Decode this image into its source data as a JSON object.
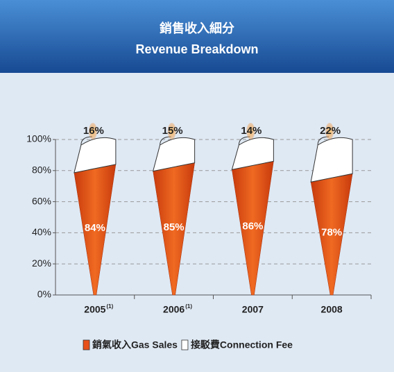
{
  "chart_data": {
    "type": "torch_stacked_bar",
    "title": "銷售收入細分",
    "subtitle": "Revenue Breakdown",
    "categories": [
      "2005",
      "2006",
      "2007",
      "2008"
    ],
    "category_notes": [
      "(1)",
      "(1)",
      null,
      null
    ],
    "series": [
      {
        "name": "銷氣收入Gas Sales",
        "color": "#e8501a",
        "values": [
          84,
          85,
          86,
          78
        ],
        "value_labels": [
          "84%",
          "85%",
          "86%",
          "78%"
        ]
      },
      {
        "name": "接駁費Connection Fee",
        "color": "#ffffff",
        "values": [
          16,
          15,
          14,
          22
        ],
        "value_labels": [
          "16%",
          "15%",
          "14%",
          "22%"
        ]
      }
    ],
    "ylim": [
      0,
      100
    ],
    "yticks": [
      {
        "value": 0,
        "label": "0%"
      },
      {
        "value": 20,
        "label": "20%"
      },
      {
        "value": 40,
        "label": "40%"
      },
      {
        "value": 60,
        "label": "60%"
      },
      {
        "value": 80,
        "label": "80%"
      },
      {
        "value": 100,
        "label": "100%"
      }
    ],
    "grid": true
  }
}
